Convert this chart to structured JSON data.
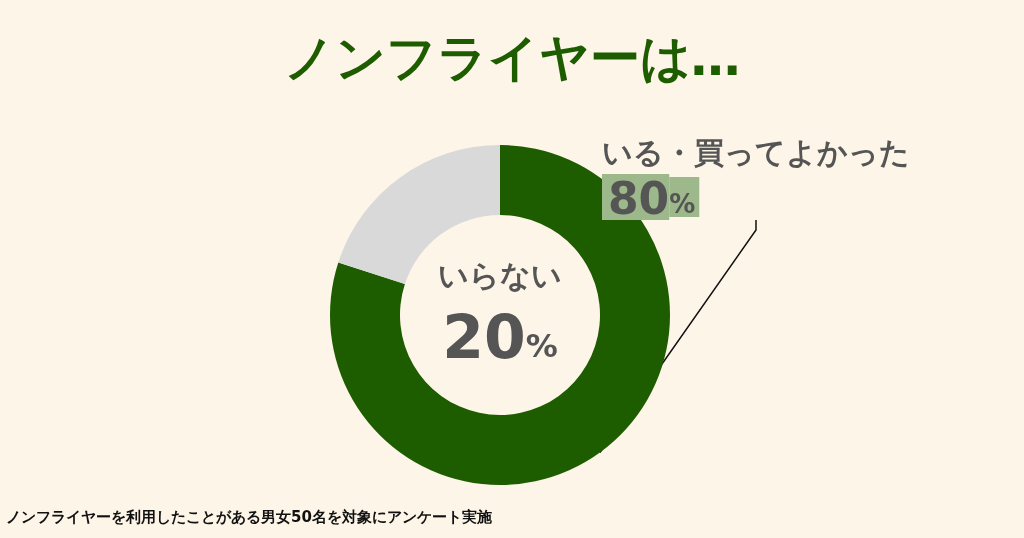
{
  "chart_data": {
    "type": "donut",
    "title": "ノンフライヤーは…",
    "categories": [
      "いる・買ってよかった",
      "いらない"
    ],
    "values": [
      80,
      20
    ],
    "colors": [
      "#1e5c00",
      "#d9d9d9"
    ],
    "value_labels": [
      "80%",
      "20%"
    ],
    "legend": false,
    "annotations": [
      "ノンフライヤーを利用したことがある男女50名を対象にアンケート実施"
    ]
  }
}
